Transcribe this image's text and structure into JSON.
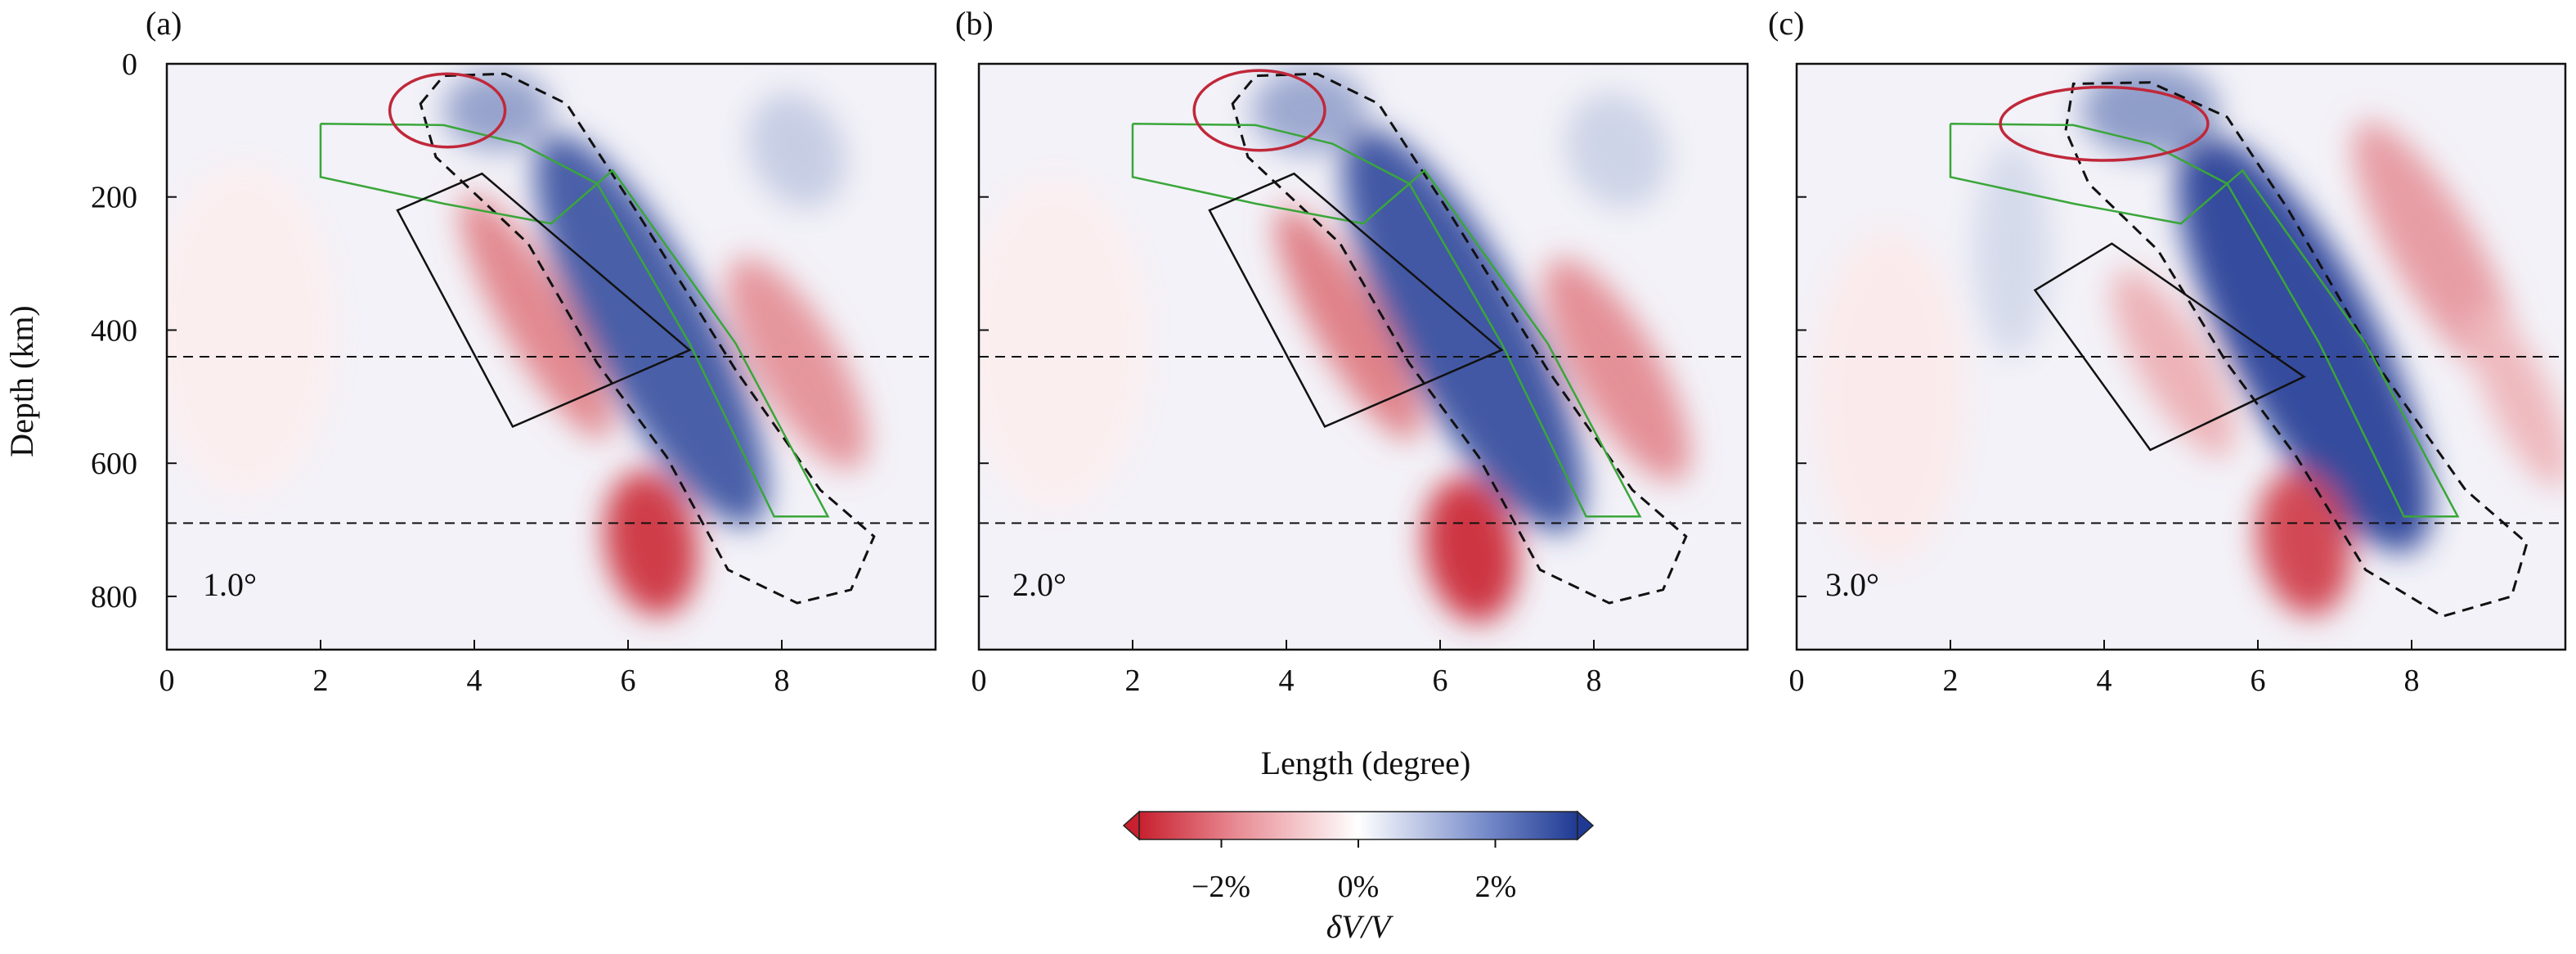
{
  "figure": {
    "y_axis_label": "Depth (km)",
    "x_axis_label": "Length (degree)"
  },
  "colorbar": {
    "ticks": [
      "−2%",
      "0%",
      "2%"
    ],
    "label": "δV/V",
    "tick_values": [
      -2,
      0,
      2
    ],
    "range": [
      -3.2,
      3.2
    ],
    "colors": {
      "negative": "#c8202e",
      "neutral": "#ffffff",
      "positive": "#1f3a93"
    }
  },
  "chart_data": [
    {
      "type": "heatmap",
      "panel_label": "(a)",
      "annotation": "1.0°",
      "xlim": [
        0,
        10
      ],
      "ylim": [
        880,
        0
      ],
      "xticks": [
        0,
        2,
        4,
        6,
        8
      ],
      "yticks": [
        0,
        200,
        400,
        600,
        800
      ],
      "reference_depths": [
        440,
        690
      ],
      "slab_outline": [
        [
          2.0,
          90
        ],
        [
          3.6,
          92
        ],
        [
          4.6,
          120
        ],
        [
          5.6,
          180
        ],
        [
          6.8,
          420
        ],
        [
          7.9,
          680
        ],
        [
          8.6,
          680
        ],
        [
          7.4,
          420
        ],
        [
          5.8,
          160
        ],
        [
          5.0,
          240
        ],
        [
          3.6,
          210
        ],
        [
          2.0,
          170
        ],
        [
          2.0,
          90
        ]
      ],
      "low_velocity_box": [
        [
          3.0,
          220
        ],
        [
          4.1,
          165
        ],
        [
          6.8,
          430
        ],
        [
          4.5,
          545
        ],
        [
          3.0,
          220
        ]
      ],
      "red_ellipse": {
        "center": [
          3.65,
          70
        ],
        "rx": 0.75,
        "ry": 55
      },
      "dashed_contour": [
        [
          3.3,
          60
        ],
        [
          3.6,
          18
        ],
        [
          4.4,
          15
        ],
        [
          5.2,
          60
        ],
        [
          6.1,
          220
        ],
        [
          7.4,
          460
        ],
        [
          8.5,
          640
        ],
        [
          9.2,
          710
        ],
        [
          8.9,
          790
        ],
        [
          8.2,
          810
        ],
        [
          7.3,
          760
        ],
        [
          6.5,
          590
        ],
        [
          5.6,
          450
        ],
        [
          4.7,
          270
        ],
        [
          3.5,
          140
        ],
        [
          3.3,
          60
        ]
      ],
      "anomalies": [
        {
          "x": 6.3,
          "y": 400,
          "rx": 0.8,
          "ry": 330,
          "rot": -28,
          "amp": 2.6
        },
        {
          "x": 4.3,
          "y": 70,
          "rx": 0.7,
          "ry": 60,
          "rot": 0,
          "amp": 1.5
        },
        {
          "x": 6.3,
          "y": 720,
          "rx": 0.6,
          "ry": 110,
          "rot": -10,
          "amp": -2.8
        },
        {
          "x": 4.8,
          "y": 380,
          "rx": 0.45,
          "ry": 210,
          "rot": -30,
          "amp": -1.7
        },
        {
          "x": 8.2,
          "y": 450,
          "rx": 0.55,
          "ry": 180,
          "rot": -30,
          "amp": -1.5
        },
        {
          "x": 8.2,
          "y": 130,
          "rx": 0.6,
          "ry": 90,
          "rot": -25,
          "amp": 0.8
        },
        {
          "x": 1.0,
          "y": 400,
          "rx": 1.2,
          "ry": 250,
          "rot": 0,
          "amp": -0.25
        }
      ]
    },
    {
      "type": "heatmap",
      "panel_label": "(b)",
      "annotation": "2.0°",
      "xlim": [
        0,
        10
      ],
      "ylim": [
        880,
        0
      ],
      "xticks": [
        0,
        2,
        4,
        6,
        8
      ],
      "yticks": [
        0,
        200,
        400,
        600,
        800
      ],
      "reference_depths": [
        440,
        690
      ],
      "slab_outline": [
        [
          2.0,
          90
        ],
        [
          3.6,
          92
        ],
        [
          4.6,
          120
        ],
        [
          5.6,
          180
        ],
        [
          6.8,
          420
        ],
        [
          7.9,
          680
        ],
        [
          8.6,
          680
        ],
        [
          7.4,
          420
        ],
        [
          5.8,
          160
        ],
        [
          5.0,
          240
        ],
        [
          3.6,
          210
        ],
        [
          2.0,
          170
        ],
        [
          2.0,
          90
        ]
      ],
      "low_velocity_box": [
        [
          3.0,
          220
        ],
        [
          4.1,
          165
        ],
        [
          6.8,
          430
        ],
        [
          4.5,
          545
        ],
        [
          3.0,
          220
        ]
      ],
      "red_ellipse": {
        "center": [
          3.65,
          70
        ],
        "rx": 0.85,
        "ry": 60
      },
      "dashed_contour": [
        [
          3.3,
          60
        ],
        [
          3.6,
          18
        ],
        [
          4.4,
          15
        ],
        [
          5.2,
          60
        ],
        [
          6.1,
          220
        ],
        [
          7.4,
          460
        ],
        [
          8.5,
          640
        ],
        [
          9.2,
          710
        ],
        [
          8.9,
          790
        ],
        [
          8.2,
          810
        ],
        [
          7.3,
          760
        ],
        [
          6.5,
          590
        ],
        [
          5.6,
          450
        ],
        [
          4.7,
          270
        ],
        [
          3.5,
          140
        ],
        [
          3.3,
          60
        ]
      ],
      "anomalies": [
        {
          "x": 6.3,
          "y": 400,
          "rx": 0.85,
          "ry": 340,
          "rot": -28,
          "amp": 2.7
        },
        {
          "x": 4.3,
          "y": 70,
          "rx": 0.75,
          "ry": 65,
          "rot": 0,
          "amp": 1.4
        },
        {
          "x": 6.4,
          "y": 730,
          "rx": 0.6,
          "ry": 110,
          "rot": -10,
          "amp": -2.9
        },
        {
          "x": 4.8,
          "y": 390,
          "rx": 0.45,
          "ry": 200,
          "rot": -30,
          "amp": -1.8
        },
        {
          "x": 8.3,
          "y": 460,
          "rx": 0.55,
          "ry": 190,
          "rot": -30,
          "amp": -1.6
        },
        {
          "x": 8.3,
          "y": 130,
          "rx": 0.65,
          "ry": 90,
          "rot": -25,
          "amp": 0.7
        },
        {
          "x": 1.0,
          "y": 420,
          "rx": 1.2,
          "ry": 250,
          "rot": 0,
          "amp": -0.25
        }
      ]
    },
    {
      "type": "heatmap",
      "panel_label": "(c)",
      "annotation": "3.0°",
      "xlim": [
        0,
        10
      ],
      "ylim": [
        880,
        0
      ],
      "xticks": [
        0,
        2,
        4,
        6,
        8
      ],
      "yticks": [
        0,
        200,
        400,
        600,
        800
      ],
      "reference_depths": [
        440,
        690
      ],
      "slab_outline": [
        [
          2.0,
          90
        ],
        [
          3.6,
          92
        ],
        [
          4.6,
          120
        ],
        [
          5.6,
          180
        ],
        [
          6.8,
          420
        ],
        [
          7.9,
          680
        ],
        [
          8.6,
          680
        ],
        [
          7.4,
          420
        ],
        [
          5.8,
          160
        ],
        [
          5.0,
          240
        ],
        [
          3.6,
          210
        ],
        [
          2.0,
          170
        ],
        [
          2.0,
          90
        ]
      ],
      "low_velocity_box": [
        [
          3.1,
          340
        ],
        [
          4.1,
          270
        ],
        [
          6.6,
          470
        ],
        [
          4.6,
          580
        ],
        [
          3.1,
          340
        ]
      ],
      "red_ellipse": {
        "center": [
          4.0,
          90
        ],
        "rx": 1.35,
        "ry": 55
      },
      "dashed_contour": [
        [
          3.5,
          100
        ],
        [
          3.6,
          30
        ],
        [
          4.6,
          28
        ],
        [
          5.6,
          80
        ],
        [
          6.4,
          220
        ],
        [
          7.6,
          460
        ],
        [
          8.7,
          640
        ],
        [
          9.5,
          720
        ],
        [
          9.3,
          800
        ],
        [
          8.4,
          830
        ],
        [
          7.4,
          760
        ],
        [
          6.5,
          590
        ],
        [
          5.6,
          450
        ],
        [
          4.7,
          280
        ],
        [
          3.8,
          180
        ],
        [
          3.5,
          100
        ]
      ],
      "anomalies": [
        {
          "x": 6.6,
          "y": 420,
          "rx": 0.95,
          "ry": 350,
          "rot": -28,
          "amp": 2.9
        },
        {
          "x": 4.6,
          "y": 70,
          "rx": 0.9,
          "ry": 70,
          "rot": 0,
          "amp": 1.6
        },
        {
          "x": 6.6,
          "y": 720,
          "rx": 0.6,
          "ry": 110,
          "rot": -10,
          "amp": -2.6
        },
        {
          "x": 4.9,
          "y": 450,
          "rx": 0.45,
          "ry": 160,
          "rot": -30,
          "amp": -1.1
        },
        {
          "x": 8.3,
          "y": 280,
          "rx": 0.55,
          "ry": 220,
          "rot": -30,
          "amp": -1.4
        },
        {
          "x": 9.4,
          "y": 500,
          "rx": 0.4,
          "ry": 150,
          "rot": -25,
          "amp": -1.0
        },
        {
          "x": 2.8,
          "y": 280,
          "rx": 0.5,
          "ry": 160,
          "rot": 0,
          "amp": 0.6
        },
        {
          "x": 1.2,
          "y": 500,
          "rx": 1.0,
          "ry": 250,
          "rot": 0,
          "amp": -0.3
        }
      ]
    }
  ]
}
